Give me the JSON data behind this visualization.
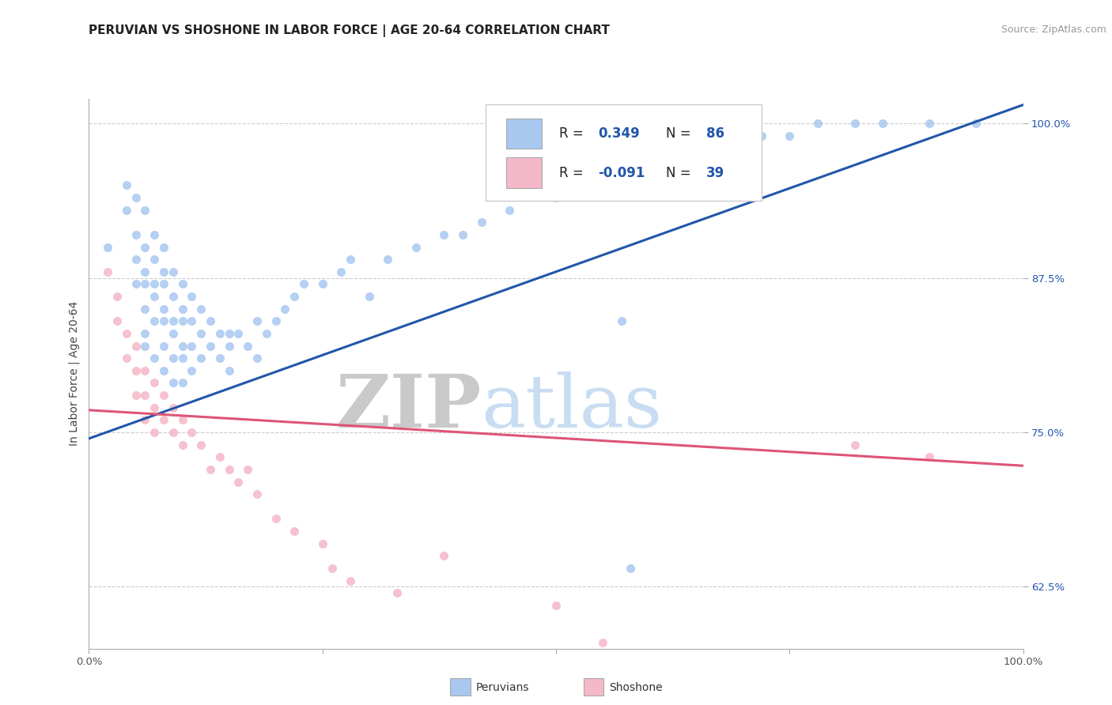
{
  "title": "PERUVIAN VS SHOSHONE IN LABOR FORCE | AGE 20-64 CORRELATION CHART",
  "source": "Source: ZipAtlas.com",
  "ylabel": "In Labor Force | Age 20-64",
  "xlim": [
    0.0,
    1.0
  ],
  "ylim": [
    0.575,
    1.02
  ],
  "yticks": [
    0.625,
    0.75,
    0.875,
    1.0
  ],
  "ytick_labels": [
    "62.5%",
    "75.0%",
    "87.5%",
    "100.0%"
  ],
  "xticks": [
    0.0,
    0.25,
    0.5,
    0.75,
    1.0
  ],
  "xtick_labels": [
    "0.0%",
    "",
    "",
    "",
    "100.0%"
  ],
  "peruvian_color": "#a8c8f0",
  "shoshone_color": "#f5b8c8",
  "peruvian_line_color": "#2255aa",
  "shoshone_line_color": "#dd5577",
  "R_peruvian": 0.349,
  "N_peruvian": 86,
  "R_shoshone": -0.091,
  "N_shoshone": 39,
  "peruvian_slope": 0.27,
  "peruvian_intercept": 0.745,
  "shoshone_slope": -0.045,
  "shoshone_intercept": 0.768,
  "background_color": "#ffffff",
  "grid_color": "#cccccc",
  "watermark_zip": "ZIP",
  "watermark_atlas": "atlas",
  "watermark_zip_color": "#c0c0c0",
  "watermark_atlas_color": "#c0d8f0",
  "title_fontsize": 11,
  "label_fontsize": 10,
  "tick_fontsize": 9.5,
  "legend_fontsize": 12,
  "peruvian_x": [
    0.02,
    0.04,
    0.04,
    0.05,
    0.05,
    0.05,
    0.05,
    0.06,
    0.06,
    0.06,
    0.06,
    0.06,
    0.06,
    0.06,
    0.07,
    0.07,
    0.07,
    0.07,
    0.07,
    0.07,
    0.08,
    0.08,
    0.08,
    0.08,
    0.08,
    0.08,
    0.08,
    0.09,
    0.09,
    0.09,
    0.09,
    0.09,
    0.09,
    0.1,
    0.1,
    0.1,
    0.1,
    0.1,
    0.1,
    0.11,
    0.11,
    0.11,
    0.11,
    0.12,
    0.12,
    0.12,
    0.13,
    0.13,
    0.14,
    0.14,
    0.15,
    0.15,
    0.15,
    0.16,
    0.17,
    0.18,
    0.18,
    0.19,
    0.2,
    0.21,
    0.22,
    0.23,
    0.25,
    0.27,
    0.28,
    0.3,
    0.32,
    0.35,
    0.38,
    0.4,
    0.42,
    0.45,
    0.5,
    0.55,
    0.6,
    0.65,
    0.7,
    0.72,
    0.75,
    0.78,
    0.82,
    0.85,
    0.9,
    0.95,
    0.57,
    0.58
  ],
  "peruvian_y": [
    0.9,
    0.95,
    0.93,
    0.94,
    0.91,
    0.89,
    0.87,
    0.93,
    0.9,
    0.88,
    0.87,
    0.85,
    0.83,
    0.82,
    0.91,
    0.89,
    0.87,
    0.86,
    0.84,
    0.81,
    0.9,
    0.88,
    0.87,
    0.85,
    0.84,
    0.82,
    0.8,
    0.88,
    0.86,
    0.84,
    0.83,
    0.81,
    0.79,
    0.87,
    0.85,
    0.84,
    0.82,
    0.81,
    0.79,
    0.86,
    0.84,
    0.82,
    0.8,
    0.85,
    0.83,
    0.81,
    0.84,
    0.82,
    0.83,
    0.81,
    0.83,
    0.82,
    0.8,
    0.83,
    0.82,
    0.84,
    0.81,
    0.83,
    0.84,
    0.85,
    0.86,
    0.87,
    0.87,
    0.88,
    0.89,
    0.86,
    0.89,
    0.9,
    0.91,
    0.91,
    0.92,
    0.93,
    0.94,
    0.95,
    0.96,
    0.97,
    0.98,
    0.99,
    0.99,
    1.0,
    1.0,
    1.0,
    1.0,
    1.0,
    0.84,
    0.64
  ],
  "shoshone_x": [
    0.02,
    0.03,
    0.03,
    0.04,
    0.04,
    0.05,
    0.05,
    0.05,
    0.06,
    0.06,
    0.06,
    0.07,
    0.07,
    0.07,
    0.08,
    0.08,
    0.09,
    0.09,
    0.1,
    0.1,
    0.11,
    0.12,
    0.13,
    0.14,
    0.15,
    0.16,
    0.17,
    0.18,
    0.2,
    0.22,
    0.25,
    0.26,
    0.28,
    0.33,
    0.38,
    0.5,
    0.55,
    0.82,
    0.9
  ],
  "shoshone_y": [
    0.88,
    0.86,
    0.84,
    0.83,
    0.81,
    0.82,
    0.8,
    0.78,
    0.8,
    0.78,
    0.76,
    0.79,
    0.77,
    0.75,
    0.78,
    0.76,
    0.77,
    0.75,
    0.76,
    0.74,
    0.75,
    0.74,
    0.72,
    0.73,
    0.72,
    0.71,
    0.72,
    0.7,
    0.68,
    0.67,
    0.66,
    0.64,
    0.63,
    0.62,
    0.65,
    0.61,
    0.58,
    0.74,
    0.73
  ]
}
